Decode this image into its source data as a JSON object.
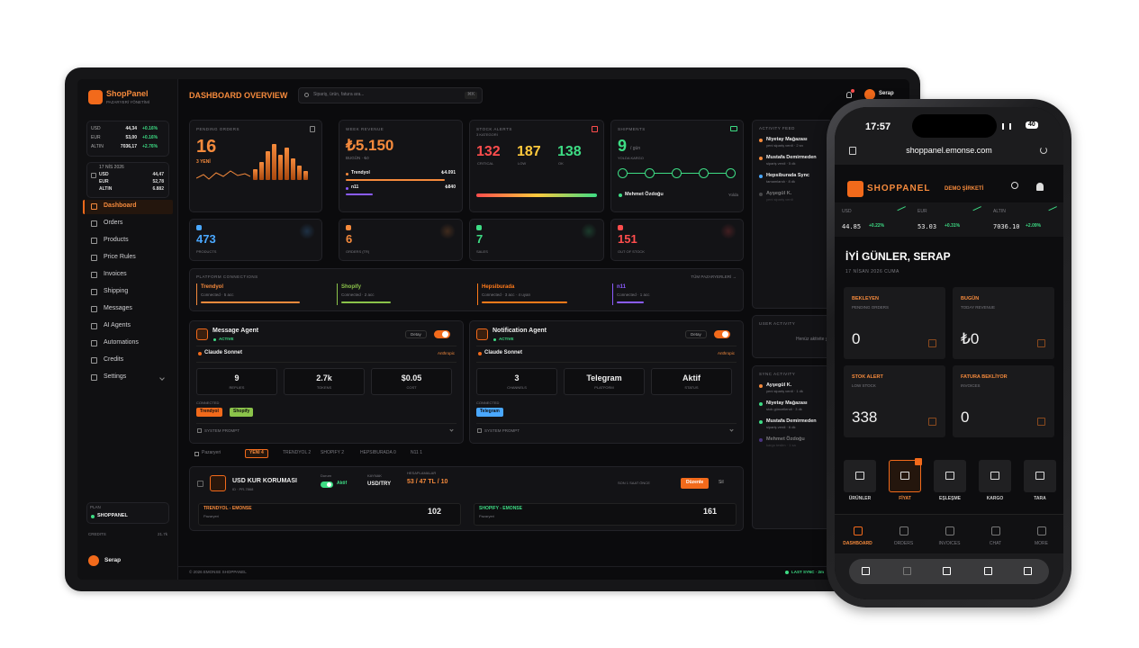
{
  "tablet": {
    "sidebar": {
      "brand": "ShopPanel",
      "tagline": "PAZARYERİ YÖNETİMİ",
      "tickers": [
        {
          "code": "USD",
          "value": "44,34",
          "change": "+0.16%"
        },
        {
          "code": "EUR",
          "value": "53,00",
          "change": "+0.16%"
        },
        {
          "code": "ALTIN",
          "value": "7036,17",
          "change": "+2.76%"
        }
      ],
      "date": "17 NİS 2026",
      "rates": [
        {
          "code": "USD",
          "value": "44,47"
        },
        {
          "code": "EUR",
          "value": "52,78"
        },
        {
          "code": "ALTIN",
          "value": "6.882"
        }
      ],
      "nav": [
        "Dashboard",
        "Orders",
        "Products",
        "Price Rules",
        "Invoices",
        "Shipping",
        "Messages",
        "AI Agents",
        "Automations",
        "Credits",
        "Settings"
      ],
      "plan_label": "PLAN",
      "plan": "SHOPPANEL",
      "credits_label": "CREDITS",
      "credits": "21.7k",
      "user": "Serap"
    },
    "header": {
      "title": "DASHBOARD OVERVIEW",
      "search": "Sipariş, ürün, fatura ara...",
      "shortcut": "⌘K",
      "user": "Serap"
    },
    "footer": {
      "copyright": "© 2026 EMONSE SHOPPANEL",
      "sync": "LAST SYNC · 2m"
    },
    "pending": {
      "label": "PENDING ORDERS",
      "value": 16,
      "sub": "3 YENİ"
    },
    "revenue": {
      "label": "WEEK REVENUE",
      "value": "₺5.150",
      "sub": "BUGÜN · ₺0",
      "rows": [
        {
          "name": "Trendyol",
          "amount": "₺4.091"
        },
        {
          "name": "n11",
          "amount": "₺840"
        }
      ]
    },
    "stock": {
      "label": "STOCK ALERTS",
      "sub": "3 KATEGORİ",
      "levels": [
        {
          "value": 132,
          "label": "CRITICAL"
        },
        {
          "value": 187,
          "label": "LOW"
        },
        {
          "value": 138,
          "label": "OK"
        }
      ]
    },
    "shipments": {
      "label": "SHIPMENTS",
      "value": 9,
      "unit": "/ gün",
      "sub": "YOLDA KARGO",
      "courier": "Mehmet Özdoğu",
      "status": "Yolda"
    },
    "mini": [
      {
        "value": 473,
        "label": "PRODUCTS"
      },
      {
        "value": 6,
        "label": "ORDERS (TR)"
      },
      {
        "value": 7,
        "label": "SALES"
      },
      {
        "value": 151,
        "label": "OUT OF STOCK"
      }
    ],
    "platforms": {
      "label": "PLATFORM CONNECTIONS",
      "link": "TÜM PAZARYERLERİ →",
      "items": [
        {
          "name": "Trendyol",
          "status": "Connected · 5 acc"
        },
        {
          "name": "Shopify",
          "status": "Connected · 2 acc"
        },
        {
          "name": "Hepsiburada",
          "status": "Connected · 3 acc · 4 uyarı"
        },
        {
          "name": "n11",
          "status": "Connected · 1 acc"
        }
      ]
    },
    "agents": [
      {
        "title": "Message Agent",
        "status": "ACTIVE",
        "button": "Detay",
        "model": "Claude Sonnet",
        "provider": "Anthropic",
        "stats": [
          {
            "value": "9",
            "label": "REPLIES"
          },
          {
            "value": "2.7k",
            "label": "TOKENS"
          },
          {
            "value": "$0.05",
            "label": "COST"
          }
        ],
        "connected_label": "CONNECTED",
        "connected": [
          "Trendyol",
          "Shopify"
        ],
        "prompt": "SYSTEM PROMPT"
      },
      {
        "title": "Notification Agent",
        "status": "ACTIVE",
        "button": "Detay",
        "model": "Claude Sonnet",
        "provider": "Anthropic",
        "stats": [
          {
            "value": "3",
            "label": "CHANNELS"
          },
          {
            "value": "Telegram",
            "label": "PLATFORM"
          },
          {
            "value": "Aktif",
            "label": "STATUS"
          }
        ],
        "connected_label": "CONNECTED",
        "connected": [
          "Telegram"
        ],
        "prompt": "SYSTEM PROMPT"
      }
    ],
    "tabs": [
      "Pazaryeri",
      "YENİ 4",
      "TRENDYOL 2",
      "SHOPIFY 2",
      "HEPSIBURADA 0",
      "N11 1"
    ],
    "rule": {
      "title": "USD KUR KORUMASI",
      "id": "ID · PR-7868",
      "status_label": "Durum",
      "status": "Aktif",
      "source_label": "KAYNAK",
      "source": "USD/TRY",
      "calc_label": "HESAPLAMALAR",
      "calc": "53 / 47 TL / 10",
      "updated": "SON 1 SAAT ÖNCE",
      "edit": "Düzenle",
      "delete": "Sil",
      "targets": [
        {
          "name": "TRENDYOL - EMONSE",
          "type": "Pazaryeri",
          "count": 102
        },
        {
          "name": "SHOPIFY - EMONSE",
          "type": "Pazaryeri",
          "count": 161
        }
      ]
    },
    "activity": {
      "label": "ACTIVITY FEED",
      "items": [
        {
          "name": "Niyetay Mağazası",
          "text": "yeni sipariş verdi · 2 sn"
        },
        {
          "name": "Mustafa Demirmeden",
          "text": "sipariş verdi · 5 dk"
        },
        {
          "name": "Hepsiburada Sync",
          "text": "tamamlandı · 8 dk"
        },
        {
          "name": "Ayşegül K.",
          "text": "yeni sipariş verdi"
        }
      ]
    },
    "user_activity": {
      "label": "USER ACTIVITY",
      "empty": "Henüz aktivite yok"
    },
    "sync_activity": {
      "label": "SYNC ACTIVITY",
      "items": [
        {
          "name": "Ayşegül K.",
          "text": "yeni sipariş verdi · 1 dk"
        },
        {
          "name": "Niyetay Mağazası",
          "text": "stok güncellendi · 3 dk"
        },
        {
          "name": "Mustafa Demirmeden",
          "text": "sipariş verdi · 6 dk"
        },
        {
          "name": "Mehmet Özdoğu",
          "text": "kargo teslim · 1 sa"
        }
      ]
    }
  },
  "phone": {
    "time": "17:57",
    "battery": "40",
    "url": "shoppanel.emonse.com",
    "brand": "SHOPPANEL",
    "company": "DEMO ŞİRKETİ",
    "tickers": [
      {
        "code": "USD",
        "value": "44.85",
        "change": "+0.22%"
      },
      {
        "code": "EUR",
        "value": "53.03",
        "change": "+0.31%"
      },
      {
        "code": "ALTIN",
        "value": "7036.10",
        "change": "+2.09%"
      }
    ],
    "greeting": "İYİ GÜNLER, SERAP",
    "date": "17 NİSAN 2026 CUMA",
    "cards": [
      {
        "label": "BEKLEYEN",
        "sub": "PENDING ORDERS",
        "value": "0"
      },
      {
        "label": "BUGÜN",
        "sub": "TODAY REVENUE",
        "value": "₺0"
      },
      {
        "label": "STOK ALERT",
        "sub": "LOW STOCK",
        "value": "338"
      },
      {
        "label": "FATURA BEKLİYOR",
        "sub": "INVOICES",
        "value": "0"
      }
    ],
    "quick": [
      "ÜRÜNLER",
      "FİYAT",
      "EŞLEŞME",
      "KARGO",
      "TARA"
    ],
    "tabs": [
      "DASHBOARD",
      "ORDERS",
      "INVOICES",
      "CHAT",
      "MORE"
    ]
  }
}
